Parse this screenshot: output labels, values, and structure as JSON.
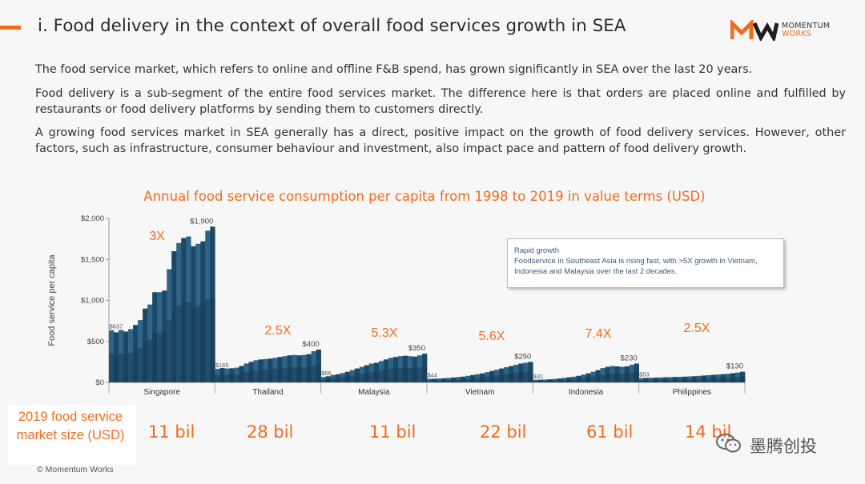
{
  "header": {
    "title": "i. Food delivery in the context of overall food services growth in SEA",
    "logo_line1": "MOMENTUM",
    "logo_line2": "WORKS"
  },
  "paragraphs": [
    "The food service market, which refers to online and offline F&B spend, has grown significantly in SEA over the last 20 years.",
    "Food delivery is a sub-segment of the entire food services market. The difference here is that orders are placed online and fulfilled by restaurants or food delivery platforms by sending them to customers directly.",
    "A growing food services market in SEA generally has a direct, positive impact on the growth of food delivery services. However, other factors, such as infrastructure, consumer behaviour and investment, also impact pace and pattern of food delivery growth."
  ],
  "callout": {
    "title": "Rapid growth",
    "body": "Foodservice in Southeast Asia is rising fast, with >5X growth in Vietnam, Indonesia and Malaysia over the last 2 decades."
  },
  "market_size": {
    "label": "2019 food service market size (USD)",
    "values": [
      "11 bil",
      "28 bil",
      "11 bil",
      "22 bil",
      "61 bil",
      "14 bil"
    ]
  },
  "footer": {
    "copyright": "© Momentum Works",
    "watermark": "墨腾创投"
  },
  "colors": {
    "accent": "#f26b1d",
    "bar_light": "#2e6587",
    "bar_dark": "#1b4866"
  },
  "chart_data": {
    "type": "bar",
    "title": "Annual food service consumption per capita from 1998 to 2019 in value terms (USD)",
    "ylabel": "Food service per capita",
    "ylim": [
      0,
      2000
    ],
    "yticks": [
      "$0",
      "$500",
      "$1,000",
      "$1,500",
      "$2,000"
    ],
    "ytick_values": [
      0,
      500,
      1000,
      1500,
      2000
    ],
    "groups": [
      {
        "name": "Singapore",
        "growth": "3X",
        "start_label": "$637",
        "end_label": "$1,900",
        "values": [
          637,
          610,
          640,
          620,
          650,
          700,
          760,
          900,
          950,
          1100,
          1100,
          1120,
          1380,
          1600,
          1700,
          1760,
          1780,
          1660,
          1690,
          1720,
          1850,
          1900
        ]
      },
      {
        "name": "Thailand",
        "growth": "2.5X",
        "start_label": "$165",
        "end_label": "$400",
        "values": [
          165,
          175,
          170,
          172,
          180,
          200,
          230,
          250,
          270,
          280,
          285,
          290,
          300,
          310,
          320,
          330,
          335,
          330,
          335,
          345,
          380,
          400
        ]
      },
      {
        "name": "Malaysia",
        "growth": "5.3X",
        "start_label": "$66",
        "end_label": "$350",
        "values": [
          66,
          75,
          90,
          100,
          115,
          130,
          150,
          170,
          190,
          210,
          230,
          240,
          260,
          280,
          300,
          310,
          320,
          325,
          320,
          315,
          330,
          350
        ]
      },
      {
        "name": "Vietnam",
        "growth": "5.6X",
        "start_label": "$44",
        "end_label": "$250",
        "values": [
          44,
          45,
          47,
          50,
          55,
          60,
          65,
          70,
          80,
          90,
          100,
          110,
          125,
          140,
          155,
          170,
          185,
          200,
          215,
          230,
          240,
          250
        ]
      },
      {
        "name": "Indonesia",
        "growth": "7.4X",
        "start_label": "$31",
        "end_label": "$230",
        "values": [
          31,
          33,
          35,
          38,
          42,
          48,
          55,
          62,
          70,
          80,
          95,
          110,
          130,
          150,
          175,
          190,
          200,
          195,
          190,
          195,
          215,
          230
        ]
      },
      {
        "name": "Philippines",
        "growth": "2.5X",
        "start_label": "$53",
        "end_label": "$130",
        "values": [
          53,
          55,
          56,
          58,
          60,
          62,
          64,
          66,
          68,
          70,
          73,
          76,
          80,
          84,
          88,
          92,
          96,
          100,
          105,
          112,
          120,
          130
        ]
      }
    ]
  }
}
